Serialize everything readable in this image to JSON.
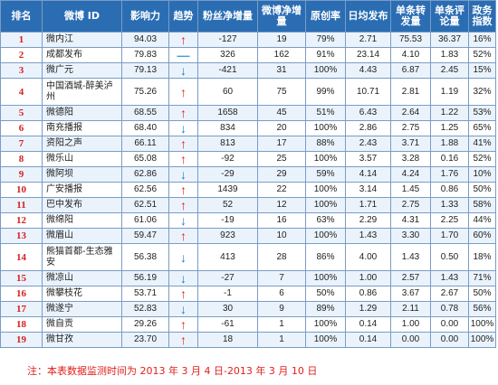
{
  "headers": [
    "排名",
    "微博 ID",
    "影响力",
    "趋势",
    "粉丝净增量",
    "微博净增量",
    "原创率",
    "日均发布",
    "单条转发量",
    "单条评论量",
    "政务指数"
  ],
  "rows": [
    {
      "rank": "1",
      "name": "微内江",
      "influence": "94.03",
      "trend": "up",
      "fans": "-127",
      "posts": "19",
      "original": "79%",
      "daily": "2.71",
      "repost": "75.53",
      "comment": "36.37",
      "gov": "16%"
    },
    {
      "rank": "2",
      "name": "成都发布",
      "influence": "79.83",
      "trend": "flat",
      "fans": "326",
      "posts": "162",
      "original": "91%",
      "daily": "23.14",
      "repost": "4.10",
      "comment": "1.83",
      "gov": "52%"
    },
    {
      "rank": "3",
      "name": "微广元",
      "influence": "79.13",
      "trend": "down",
      "fans": "-421",
      "posts": "31",
      "original": "100%",
      "daily": "4.43",
      "repost": "6.87",
      "comment": "2.45",
      "gov": "15%"
    },
    {
      "rank": "4",
      "name": "中国酒城-醉美泸州",
      "influence": "75.26",
      "trend": "up",
      "fans": "60",
      "posts": "75",
      "original": "99%",
      "daily": "10.71",
      "repost": "2.81",
      "comment": "1.19",
      "gov": "32%"
    },
    {
      "rank": "5",
      "name": "微德阳",
      "influence": "68.55",
      "trend": "up",
      "fans": "1658",
      "posts": "45",
      "original": "51%",
      "daily": "6.43",
      "repost": "2.64",
      "comment": "1.22",
      "gov": "53%"
    },
    {
      "rank": "6",
      "name": "南充播报",
      "influence": "68.40",
      "trend": "down",
      "fans": "834",
      "posts": "20",
      "original": "100%",
      "daily": "2.86",
      "repost": "2.75",
      "comment": "1.25",
      "gov": "65%"
    },
    {
      "rank": "7",
      "name": "资阳之声",
      "influence": "66.11",
      "trend": "up",
      "fans": "813",
      "posts": "17",
      "original": "88%",
      "daily": "2.43",
      "repost": "3.71",
      "comment": "1.88",
      "gov": "41%"
    },
    {
      "rank": "8",
      "name": "微乐山",
      "influence": "65.08",
      "trend": "up",
      "fans": "-92",
      "posts": "25",
      "original": "100%",
      "daily": "3.57",
      "repost": "3.28",
      "comment": "0.16",
      "gov": "52%"
    },
    {
      "rank": "9",
      "name": "微阿坝",
      "influence": "62.86",
      "trend": "down",
      "fans": "-29",
      "posts": "29",
      "original": "59%",
      "daily": "4.14",
      "repost": "4.24",
      "comment": "1.76",
      "gov": "10%"
    },
    {
      "rank": "10",
      "name": "广安播报",
      "influence": "62.56",
      "trend": "up",
      "fans": "1439",
      "posts": "22",
      "original": "100%",
      "daily": "3.14",
      "repost": "1.45",
      "comment": "0.86",
      "gov": "50%"
    },
    {
      "rank": "11",
      "name": "巴中发布",
      "influence": "62.51",
      "trend": "up",
      "fans": "52",
      "posts": "12",
      "original": "100%",
      "daily": "1.71",
      "repost": "2.75",
      "comment": "1.33",
      "gov": "58%"
    },
    {
      "rank": "12",
      "name": "微绵阳",
      "influence": "61.06",
      "trend": "down",
      "fans": "-19",
      "posts": "16",
      "original": "63%",
      "daily": "2.29",
      "repost": "4.31",
      "comment": "2.25",
      "gov": "44%"
    },
    {
      "rank": "13",
      "name": "微眉山",
      "influence": "59.47",
      "trend": "up",
      "fans": "923",
      "posts": "10",
      "original": "100%",
      "daily": "1.43",
      "repost": "3.30",
      "comment": "1.70",
      "gov": "60%"
    },
    {
      "rank": "14",
      "name": "熊猫首都-生态雅安",
      "influence": "56.38",
      "trend": "down",
      "fans": "413",
      "posts": "28",
      "original": "86%",
      "daily": "4.00",
      "repost": "1.43",
      "comment": "0.50",
      "gov": "18%"
    },
    {
      "rank": "15",
      "name": "微凉山",
      "influence": "56.19",
      "trend": "down",
      "fans": "-27",
      "posts": "7",
      "original": "100%",
      "daily": "1.00",
      "repost": "2.57",
      "comment": "1.43",
      "gov": "71%"
    },
    {
      "rank": "16",
      "name": "微攀枝花",
      "influence": "53.71",
      "trend": "up",
      "fans": "-1",
      "posts": "6",
      "original": "50%",
      "daily": "0.86",
      "repost": "3.67",
      "comment": "2.67",
      "gov": "50%"
    },
    {
      "rank": "17",
      "name": "微遂宁",
      "influence": "52.83",
      "trend": "down",
      "fans": "30",
      "posts": "9",
      "original": "89%",
      "daily": "1.29",
      "repost": "2.11",
      "comment": "0.78",
      "gov": "56%"
    },
    {
      "rank": "18",
      "name": "微自贡",
      "influence": "29.26",
      "trend": "up",
      "fans": "-61",
      "posts": "1",
      "original": "100%",
      "daily": "0.14",
      "repost": "1.00",
      "comment": "0.00",
      "gov": "100%"
    },
    {
      "rank": "19",
      "name": "微甘孜",
      "influence": "23.70",
      "trend": "up",
      "fans": "18",
      "posts": "1",
      "original": "100%",
      "daily": "0.14",
      "repost": "0.00",
      "comment": "0.00",
      "gov": "100%"
    }
  ],
  "trend_symbols": {
    "up": "↑",
    "down": "↓",
    "flat": "—"
  },
  "trend_colors": {
    "up": "#e02020",
    "down": "#1d78d0",
    "flat": "#3aa0d8"
  },
  "footnote": "注：本表数据监测时间为 2013 年 3 月 4 日-2013 年 3 月 10 日"
}
